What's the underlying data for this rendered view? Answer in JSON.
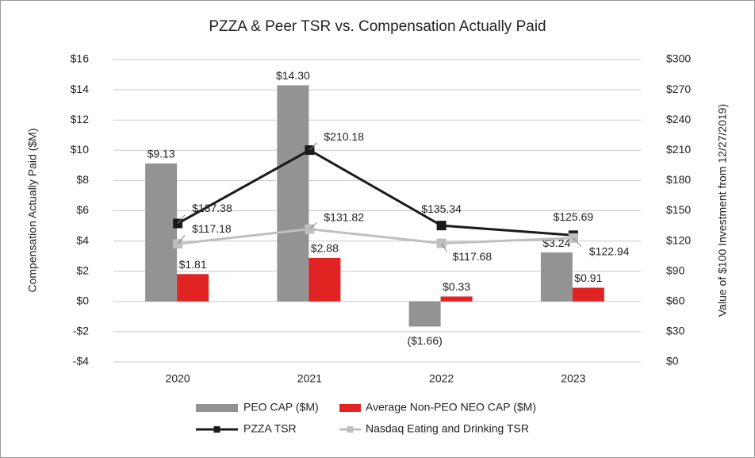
{
  "chart_data": {
    "type": "bar-line",
    "title": "PZZA & Peer TSR vs. Compensation Actually Paid",
    "ylabel": "Compensation Actually Paid ($M)",
    "y2label": "Value of $100 Investment from 12/27/2019)",
    "categories": [
      "2020",
      "2021",
      "2022",
      "2023"
    ],
    "series": [
      {
        "name": "PEO CAP ($M)",
        "kind": "bar",
        "color": "#939393",
        "values": [
          9.13,
          14.3,
          -1.66,
          3.24
        ],
        "value_labels": [
          "$9.13",
          "$14.30",
          "($1.66)",
          "$3.24"
        ]
      },
      {
        "name": "Average Non-PEO NEO CAP ($M)",
        "kind": "bar",
        "color": "#e02424",
        "values": [
          1.81,
          2.88,
          0.33,
          0.91
        ],
        "value_labels": [
          "$1.81",
          "$2.88",
          "$0.33",
          "$0.91"
        ]
      },
      {
        "name": "PZZA TSR",
        "kind": "line",
        "axis": "y2",
        "color": "#1a1a1a",
        "values": [
          137.38,
          210.18,
          135.34,
          125.69
        ],
        "value_labels": [
          "$137.38",
          "$210.18",
          "$135.34",
          "$125.69"
        ]
      },
      {
        "name": "Nasdaq Eating and Drinking TSR",
        "kind": "line",
        "axis": "y2",
        "color": "#bfbfbf",
        "values": [
          117.18,
          131.82,
          117.68,
          122.94
        ],
        "value_labels": [
          "$117.18",
          "$131.82",
          "$117.68",
          "$122.94"
        ]
      }
    ],
    "ylim": [
      -4,
      16
    ],
    "yticks": [
      {
        "value": -4,
        "label": "-$4"
      },
      {
        "value": -2,
        "label": "-$2"
      },
      {
        "value": 0,
        "label": "$0"
      },
      {
        "value": 2,
        "label": "$2"
      },
      {
        "value": 4,
        "label": "$4"
      },
      {
        "value": 6,
        "label": "$6"
      },
      {
        "value": 8,
        "label": "$8"
      },
      {
        "value": 10,
        "label": "$10"
      },
      {
        "value": 12,
        "label": "$12"
      },
      {
        "value": 14,
        "label": "$14"
      },
      {
        "value": 16,
        "label": "$16"
      }
    ],
    "y2lim": [
      0,
      300
    ],
    "y2ticks": [
      {
        "value": 0,
        "label": "$0"
      },
      {
        "value": 30,
        "label": "$30"
      },
      {
        "value": 60,
        "label": "$60"
      },
      {
        "value": 90,
        "label": "$90"
      },
      {
        "value": 120,
        "label": "$120"
      },
      {
        "value": 150,
        "label": "$150"
      },
      {
        "value": 180,
        "label": "$180"
      },
      {
        "value": 210,
        "label": "$210"
      },
      {
        "value": 240,
        "label": "$240"
      },
      {
        "value": 270,
        "label": "$270"
      },
      {
        "value": 300,
        "label": "$300"
      }
    ],
    "grid": true
  }
}
